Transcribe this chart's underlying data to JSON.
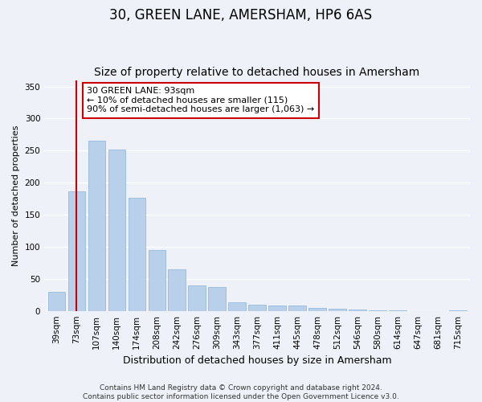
{
  "title": "30, GREEN LANE, AMERSHAM, HP6 6AS",
  "subtitle": "Size of property relative to detached houses in Amersham",
  "xlabel": "Distribution of detached houses by size in Amersham",
  "ylabel": "Number of detached properties",
  "categories": [
    "39sqm",
    "73sqm",
    "107sqm",
    "140sqm",
    "174sqm",
    "208sqm",
    "242sqm",
    "276sqm",
    "309sqm",
    "343sqm",
    "377sqm",
    "411sqm",
    "445sqm",
    "478sqm",
    "512sqm",
    "546sqm",
    "580sqm",
    "614sqm",
    "647sqm",
    "681sqm",
    "715sqm"
  ],
  "values": [
    30,
    187,
    265,
    252,
    177,
    95,
    65,
    40,
    37,
    13,
    10,
    9,
    8,
    5,
    3,
    2,
    1,
    1,
    0,
    0,
    1
  ],
  "bar_color": "#b8d0ea",
  "bar_edge_color": "#8ab4d8",
  "vline_x": 1.0,
  "vline_color": "#cc0000",
  "ylim": [
    0,
    360
  ],
  "yticks": [
    0,
    50,
    100,
    150,
    200,
    250,
    300,
    350
  ],
  "annotation_text": "30 GREEN LANE: 93sqm\n← 10% of detached houses are smaller (115)\n90% of semi-detached houses are larger (1,063) →",
  "annotation_box_color": "#ffffff",
  "annotation_box_edge": "#cc0000",
  "footer_line1": "Contains HM Land Registry data © Crown copyright and database right 2024.",
  "footer_line2": "Contains public sector information licensed under the Open Government Licence v3.0.",
  "bg_color": "#eef2f8",
  "plot_bg_color": "#eef2f8",
  "grid_color": "#ffffff",
  "title_fontsize": 12,
  "subtitle_fontsize": 10,
  "xlabel_fontsize": 9,
  "ylabel_fontsize": 8,
  "tick_fontsize": 7.5,
  "footer_fontsize": 6.5,
  "annotation_fontsize": 8
}
